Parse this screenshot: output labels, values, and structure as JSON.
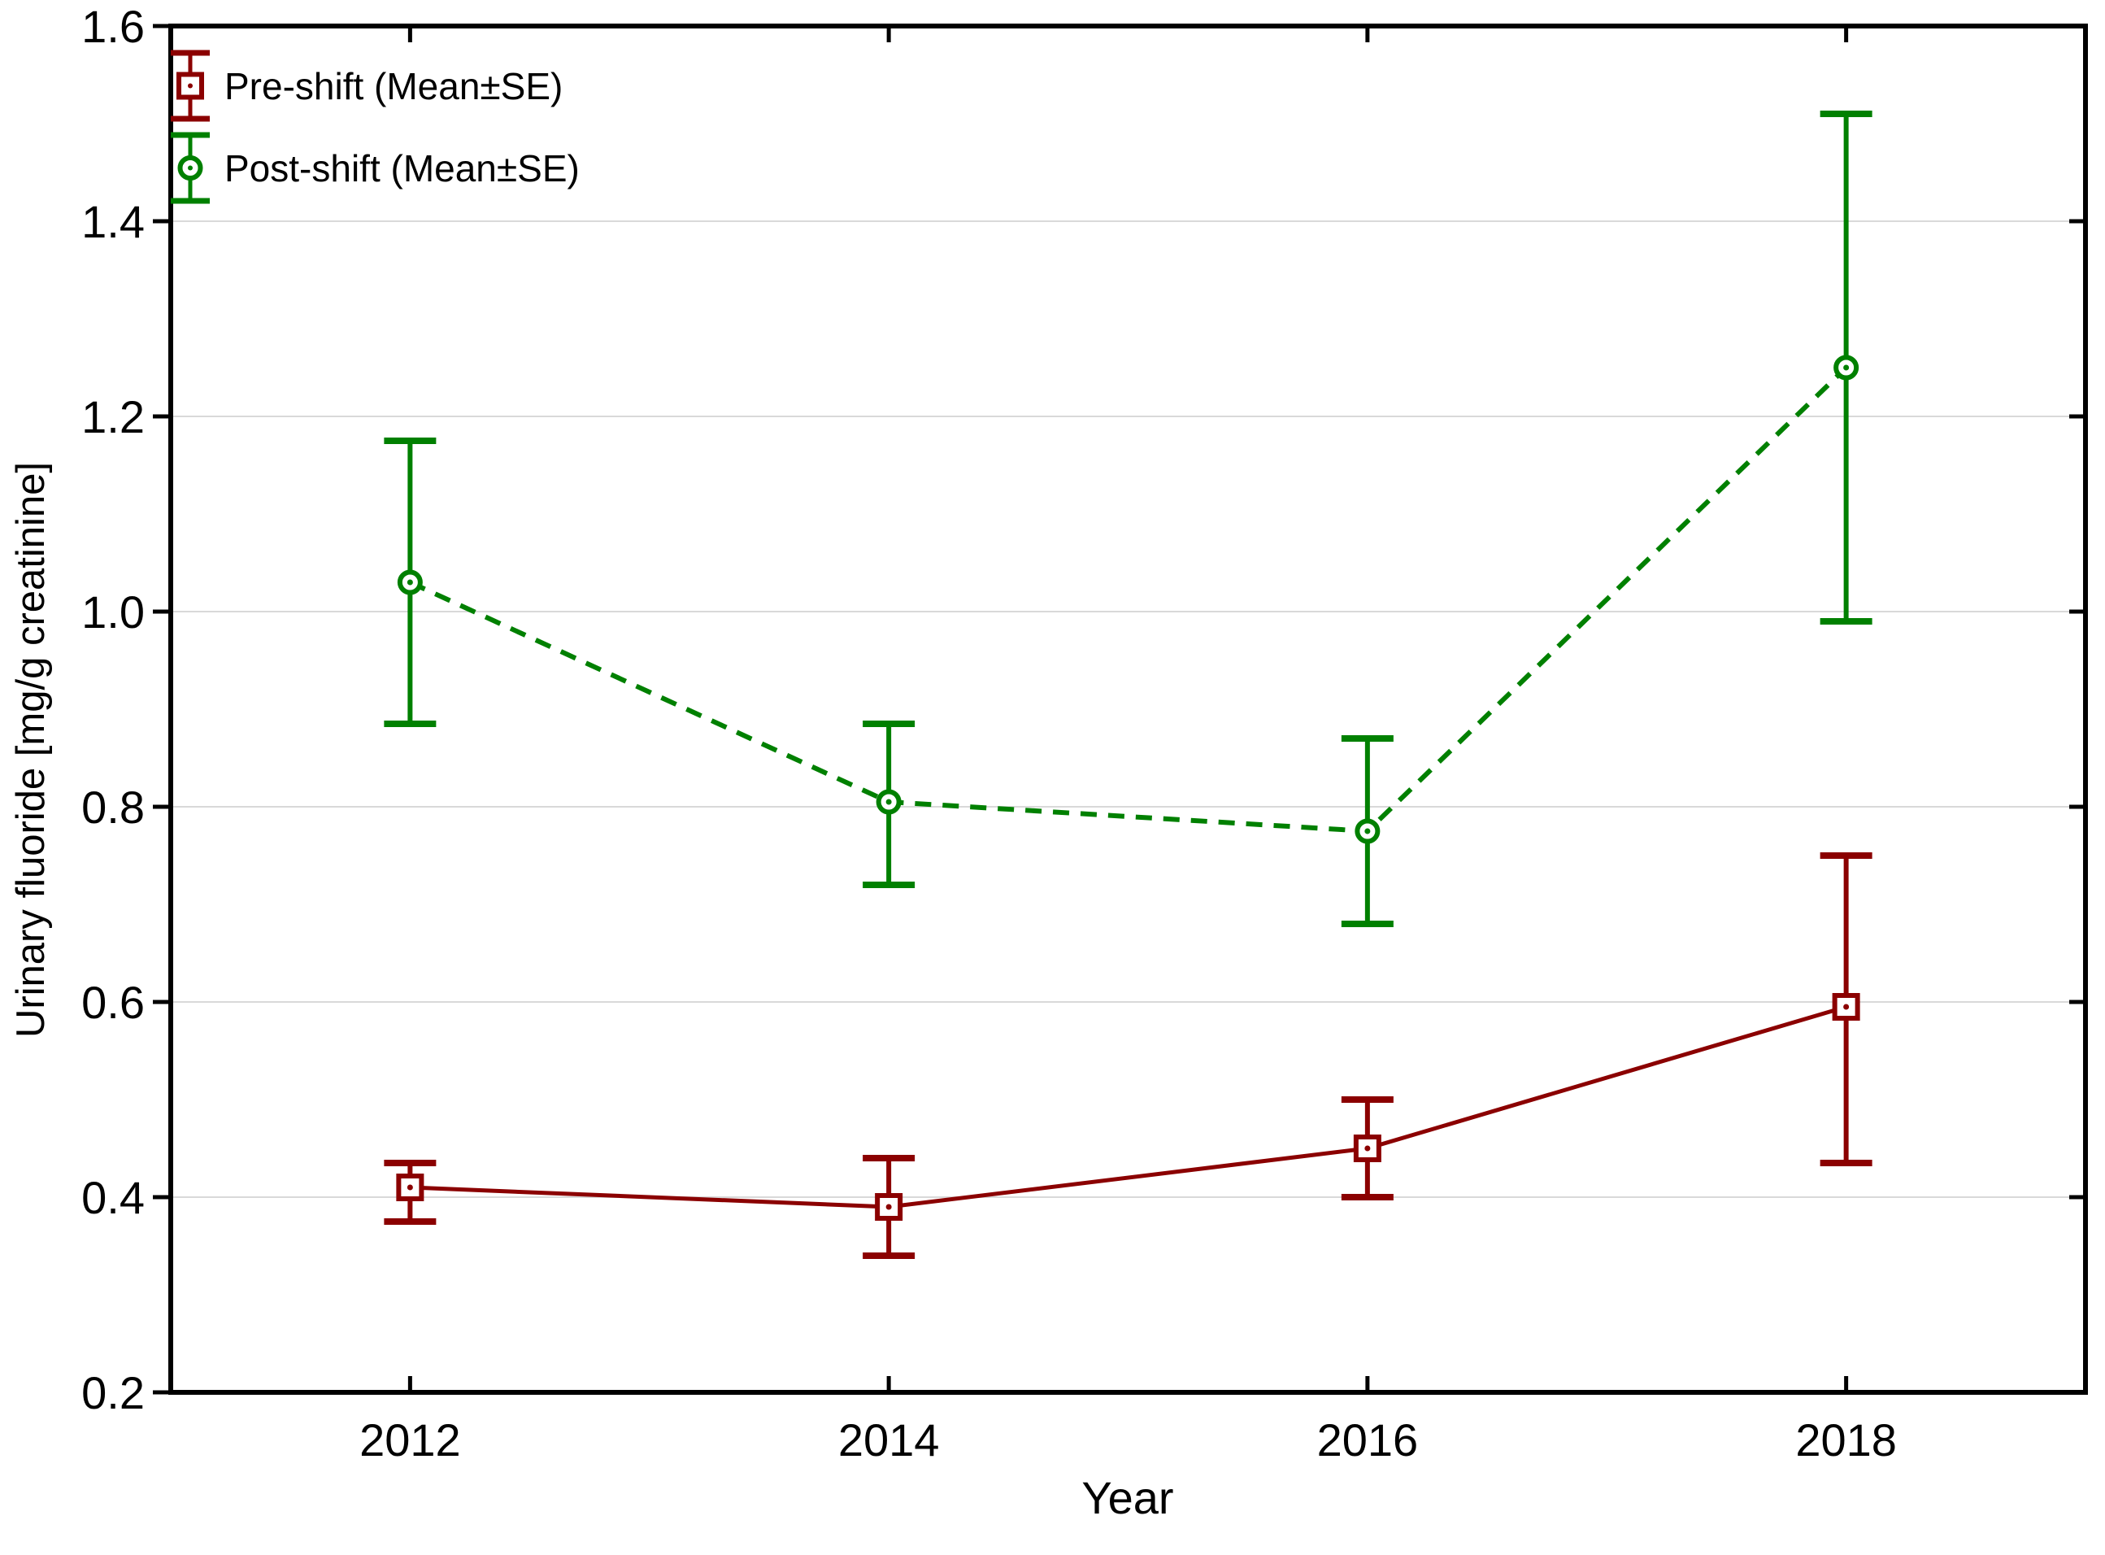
{
  "figure": {
    "background": "#ffffff",
    "frame_color": "#000000",
    "grid_color": "#d9d9d9",
    "text_color": "#000000"
  },
  "chart_data": {
    "type": "line",
    "title": "",
    "xlabel": "Year",
    "ylabel": "Urinary fluoride [mg/g creatinine]",
    "categories": [
      "2012",
      "2014",
      "2016",
      "2018"
    ],
    "ylim": [
      0.2,
      1.6
    ],
    "ytick_step": 0.2,
    "grid": "horizontal",
    "legend_position": "top-left-inside",
    "error_bar_type": "standard error",
    "series": [
      {
        "name": "Pre-shift (Mean±SE)",
        "color": "#8B0000",
        "marker": "square",
        "line_style": "solid",
        "means": [
          0.41,
          0.39,
          0.45,
          0.595
        ],
        "upper": [
          0.435,
          0.44,
          0.5,
          0.75
        ],
        "lower": [
          0.375,
          0.34,
          0.4,
          0.435
        ]
      },
      {
        "name": "Post-shift (Mean±SE)",
        "color": "#008000",
        "marker": "circle",
        "line_style": "dashed",
        "means": [
          1.03,
          0.805,
          0.775,
          1.25
        ],
        "upper": [
          1.175,
          0.885,
          0.87,
          1.51
        ],
        "lower": [
          0.885,
          0.72,
          0.68,
          0.99
        ]
      }
    ]
  }
}
